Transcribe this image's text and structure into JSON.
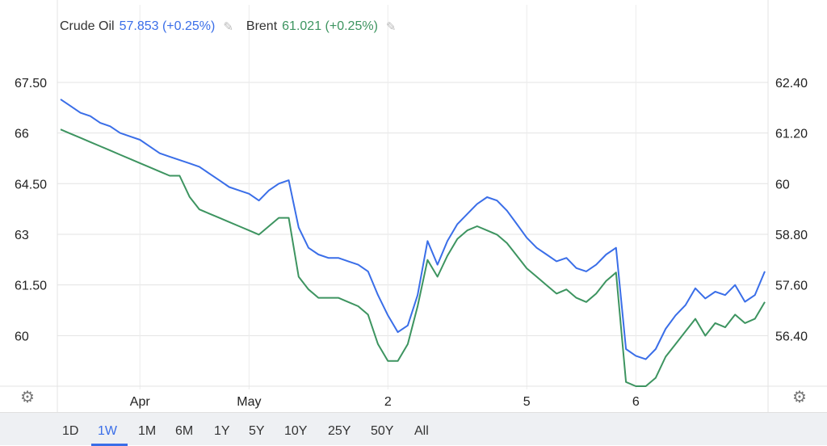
{
  "legend": [
    {
      "name": "Crude Oil",
      "value": "57.853 (+0.25%)",
      "color": "#3a6ee8",
      "icon": "pencil-icon"
    },
    {
      "name": "Brent",
      "value": "61.021 (+0.25%)",
      "color": "#3d9460",
      "icon": "pencil-icon"
    }
  ],
  "range_buttons": [
    "1D",
    "1W",
    "1M",
    "6M",
    "1Y",
    "5Y",
    "10Y",
    "25Y",
    "50Y",
    "All"
  ],
  "active_range": "1W",
  "settings_icon": "gear-icon",
  "chart_data": {
    "type": "line",
    "x_tick_labels": [
      "Apr",
      "May",
      "2",
      "5",
      "6"
    ],
    "left_axis": {
      "ticks": [
        "67.50",
        "66",
        "64.50",
        "63",
        "61.50",
        "60"
      ],
      "range": [
        58.5,
        68.6
      ]
    },
    "right_axis": {
      "ticks": [
        "62.40",
        "61.20",
        "60",
        "58.80",
        "57.60",
        "56.40"
      ],
      "range": [
        55.2,
        63.3
      ]
    },
    "grid": true,
    "series": [
      {
        "name": "Crude Oil",
        "axis": "left",
        "color": "#3a6ee8",
        "values": [
          67.0,
          66.8,
          66.6,
          66.5,
          66.3,
          66.2,
          66.0,
          65.9,
          65.8,
          65.6,
          65.4,
          65.3,
          65.2,
          65.1,
          65.0,
          64.8,
          64.6,
          64.4,
          64.3,
          64.2,
          64.0,
          64.3,
          64.5,
          64.6,
          63.2,
          62.6,
          62.4,
          62.3,
          62.3,
          62.2,
          62.1,
          61.9,
          61.2,
          60.6,
          60.1,
          60.3,
          61.2,
          62.8,
          62.1,
          62.8,
          63.3,
          63.6,
          63.9,
          64.1,
          64.0,
          63.7,
          63.3,
          62.9,
          62.6,
          62.4,
          62.2,
          62.3,
          62.0,
          61.9,
          62.1,
          62.4,
          62.6,
          59.6,
          59.4,
          59.3,
          59.6,
          60.2,
          60.6,
          60.9,
          61.4,
          61.1,
          61.3,
          61.2,
          61.5,
          61.0,
          61.2,
          61.9
        ],
        "min": 59.3,
        "max": 67.0
      },
      {
        "name": "Brent",
        "axis": "right",
        "color": "#3d9460",
        "values": [
          61.3,
          61.2,
          61.1,
          61.0,
          60.9,
          60.8,
          60.7,
          60.6,
          60.5,
          60.4,
          60.3,
          60.2,
          60.2,
          59.7,
          59.4,
          59.3,
          59.2,
          59.1,
          59.0,
          58.9,
          58.8,
          59.0,
          59.2,
          59.2,
          57.8,
          57.5,
          57.3,
          57.3,
          57.3,
          57.2,
          57.1,
          56.9,
          56.2,
          55.8,
          55.8,
          56.2,
          57.1,
          58.2,
          57.8,
          58.3,
          58.7,
          58.9,
          59.0,
          58.9,
          58.8,
          58.6,
          58.3,
          58.0,
          57.8,
          57.6,
          57.4,
          57.5,
          57.3,
          57.2,
          57.4,
          57.7,
          57.9,
          55.3,
          55.2,
          55.2,
          55.4,
          55.9,
          56.2,
          56.5,
          56.8,
          56.4,
          56.7,
          56.6,
          56.9,
          56.7,
          56.8,
          57.2
        ],
        "min": 55.2,
        "max": 61.3
      }
    ]
  }
}
